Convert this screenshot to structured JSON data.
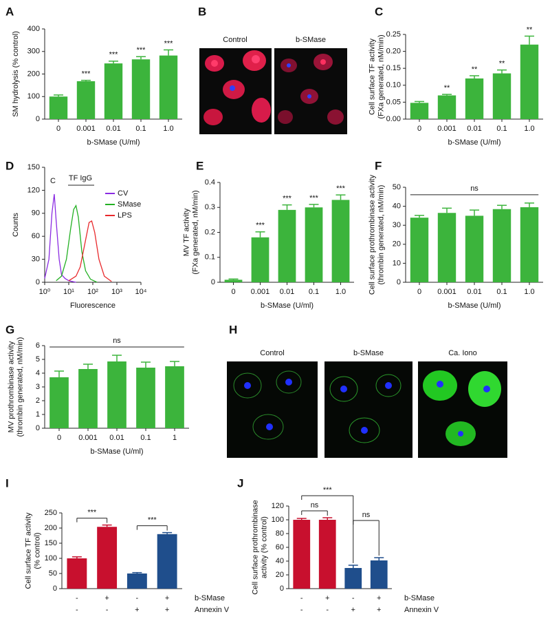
{
  "chart_data": [
    {
      "type": "bar",
      "panel": "A",
      "ylabel": [
        "SM hydrolysis (% control)"
      ],
      "xlabel": "b-SMase (U/ml)",
      "categories": [
        "0",
        "0.001",
        "0.01",
        "0.1",
        "1.0"
      ],
      "values": [
        100,
        168,
        247,
        265,
        282
      ],
      "errors": [
        7,
        4,
        10,
        12,
        25
      ],
      "annotations": [
        null,
        "***",
        "***",
        "***",
        "***"
      ],
      "color": "#3cb43c",
      "ylim": [
        0,
        400
      ],
      "yticks": [
        0,
        100,
        200,
        300,
        400
      ]
    },
    {
      "type": "bar",
      "panel": "C",
      "ylabel": [
        "Cell surface TF activity",
        "(FXa generated, nM/min)"
      ],
      "xlabel": "b-SMase (U/ml)",
      "categories": [
        "0",
        "0.001",
        "0.01",
        "0.1",
        "1.0"
      ],
      "values": [
        0.048,
        0.07,
        0.12,
        0.135,
        0.22
      ],
      "errors": [
        0.004,
        0.003,
        0.008,
        0.01,
        0.025
      ],
      "annotations": [
        null,
        "**",
        "**",
        "**",
        "**"
      ],
      "color": "#3cb43c",
      "ylim": [
        0,
        0.25
      ],
      "yticks": [
        {
          "value": 0,
          "label": "0.00"
        },
        0.05,
        {
          "value": 0.1,
          "label": "0.10"
        },
        0.15,
        {
          "value": 0.2,
          "label": "0.20"
        },
        0.25
      ]
    },
    {
      "type": "line",
      "panel": "D",
      "ylabel": [
        "Counts"
      ],
      "xlabel": "Fluorescence",
      "log_x": true,
      "legend": "upper right",
      "annotations": [
        "C",
        "TF IgG"
      ],
      "series": [
        {
          "name": "CV",
          "color": "#8a2be2",
          "x": [
            1,
            1.5,
            2,
            2.5,
            3,
            4,
            5,
            7,
            10,
            20
          ],
          "values": [
            5,
            30,
            90,
            115,
            80,
            30,
            10,
            5,
            2,
            0
          ]
        },
        {
          "name": "SMase",
          "color": "#22b022",
          "x": [
            3,
            5,
            8,
            12,
            16,
            20,
            25,
            35,
            50,
            80,
            150
          ],
          "values": [
            2,
            8,
            30,
            70,
            95,
            100,
            85,
            40,
            15,
            4,
            0
          ]
        },
        {
          "name": "LPS",
          "color": "#e8282b",
          "x": [
            10,
            20,
            30,
            50,
            70,
            90,
            120,
            180,
            300,
            600
          ],
          "values": [
            2,
            8,
            20,
            55,
            78,
            80,
            65,
            30,
            8,
            1
          ]
        }
      ],
      "xlim": [
        1,
        10000
      ],
      "xticks": [
        {
          "value": 1,
          "label": "10⁰"
        },
        {
          "value": 10,
          "label": "10¹"
        },
        {
          "value": 100,
          "label": "10²"
        },
        {
          "value": 1000,
          "label": "10³"
        },
        {
          "value": 10000,
          "label": "10⁴"
        }
      ],
      "ylim": [
        0,
        150
      ],
      "yticks": [
        0,
        30,
        60,
        90,
        120,
        150
      ]
    },
    {
      "type": "bar",
      "panel": "E",
      "ylabel": [
        "MV TF activity",
        "(FXa generated, nM/min)"
      ],
      "xlabel": "b-SMase (U/ml)",
      "categories": [
        "0",
        "0.001",
        "0.01",
        "0.1",
        "1.0"
      ],
      "values": [
        0.01,
        0.18,
        0.29,
        0.3,
        0.33
      ],
      "errors": [
        0.003,
        0.022,
        0.02,
        0.012,
        0.02
      ],
      "annotations": [
        null,
        "***",
        "***",
        "***",
        "***"
      ],
      "color": "#3cb43c",
      "ylim": [
        0,
        0.4
      ],
      "yticks": [
        0,
        0.1,
        0.2,
        0.3,
        0.4
      ]
    },
    {
      "type": "bar",
      "panel": "F",
      "ylabel": [
        "Cell surface prothrombinase activity",
        "(thrombin generated, nM/min)"
      ],
      "xlabel": "b-SMase (U/ml)",
      "categories": [
        "0",
        "0.001",
        "0.01",
        "0.1",
        "1.0"
      ],
      "values": [
        34,
        36.5,
        35,
        38.5,
        39.5
      ],
      "errors": [
        1.2,
        2.5,
        3,
        2,
        2.2
      ],
      "bracket": "ns",
      "color": "#3cb43c",
      "ylim": [
        0,
        50
      ],
      "yticks": [
        0,
        10,
        20,
        30,
        40,
        50
      ]
    },
    {
      "type": "bar",
      "panel": "G",
      "ylabel": [
        "MV prothrombinase activity",
        "(thrombin generated, nM/min)"
      ],
      "xlabel": "b-SMase (U/ml)",
      "categories": [
        "0",
        "0.001",
        "0.01",
        "0.1",
        "1"
      ],
      "values": [
        3.7,
        4.3,
        4.85,
        4.4,
        4.5
      ],
      "errors": [
        0.45,
        0.35,
        0.45,
        0.4,
        0.35
      ],
      "bracket": "ns",
      "color": "#3cb43c",
      "ylim": [
        0,
        6
      ],
      "yticks": [
        0,
        1,
        2,
        3,
        4,
        5,
        6
      ]
    },
    {
      "type": "bar",
      "panel": "I",
      "ylabel": [
        "Cell surface TF activity",
        "(% control)"
      ],
      "conditions": [
        {
          "name": "b-SMase",
          "labels": [
            "-",
            "+",
            "-",
            "+"
          ]
        },
        {
          "name": "Annexin V",
          "labels": [
            "-",
            "-",
            "+",
            "+"
          ]
        }
      ],
      "values": [
        100,
        204,
        50,
        180
      ],
      "errors": [
        5,
        6,
        3,
        5
      ],
      "colors": [
        "#c8102e",
        "#c8102e",
        "#1f4e8c",
        "#1f4e8c"
      ],
      "brackets": [
        {
          "label": "***",
          "from": 0,
          "to": 1
        },
        {
          "label": "***",
          "from": 2,
          "to": 3
        }
      ],
      "ylim": [
        0,
        250
      ],
      "yticks": [
        0,
        50,
        100,
        150,
        200,
        250
      ]
    },
    {
      "type": "bar",
      "panel": "J",
      "ylabel": [
        "Cell surface prothrombinase",
        "activity (% control)"
      ],
      "conditions": [
        {
          "name": "b-SMase",
          "labels": [
            "-",
            "+",
            "-",
            "+"
          ]
        },
        {
          "name": "Annexin V",
          "labels": [
            "-",
            "-",
            "+",
            "+"
          ]
        }
      ],
      "values": [
        100,
        100,
        30,
        41
      ],
      "errors": [
        2,
        3,
        4,
        4
      ],
      "colors": [
        "#c8102e",
        "#c8102e",
        "#1f4e8c",
        "#1f4e8c"
      ],
      "brackets": [
        {
          "label": "ns",
          "from": 0,
          "to": 1
        },
        {
          "label": "***",
          "from": 0,
          "to": 2
        },
        {
          "label": "ns",
          "from": 2,
          "to": 3
        }
      ],
      "ylim": [
        0,
        120
      ],
      "yticks": [
        0,
        20,
        40,
        60,
        80,
        100,
        120
      ]
    }
  ],
  "images": [
    {
      "panel": "B",
      "labels": [
        "Control",
        "b-SMase"
      ]
    },
    {
      "panel": "H",
      "labels": [
        "Control",
        "b-SMase",
        "Ca. Iono"
      ]
    }
  ]
}
